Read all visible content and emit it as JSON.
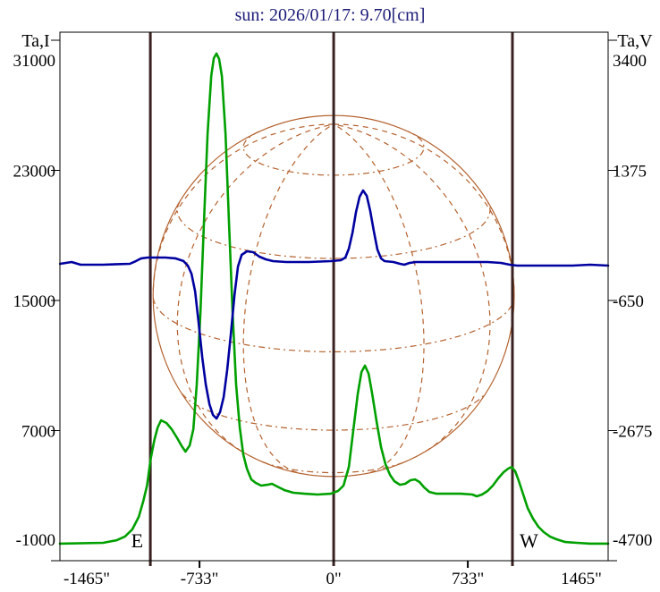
{
  "chart_data": {
    "type": "line",
    "title": "sun: 2026/01/17: 9.70[cm]",
    "x_axis": {
      "tick_labels": [
        "-1465\"",
        "-733\"",
        "0\"",
        "733\"",
        "1465\""
      ],
      "tick_values": [
        -1465,
        -733,
        0,
        733,
        1465
      ],
      "bottom_tick_values": [
        -733,
        733
      ],
      "range": [
        -1496,
        1500
      ],
      "unit": "arcsec"
    },
    "left_axis": {
      "label": "Ta,I",
      "tick_labels": [
        "31000",
        "23000",
        "15000",
        "7000",
        "-1000"
      ],
      "tick_values": [
        31000,
        23000,
        15000,
        7000,
        -1000
      ],
      "range": [
        -1000,
        31495
      ]
    },
    "right_axis": {
      "label": "Ta,V",
      "tick_labels": [
        "3400",
        "1375",
        "-650",
        "-2675",
        "-4700"
      ],
      "tick_values": [
        3400,
        1375,
        -650,
        -2675,
        -4700
      ],
      "range": [
        -4700,
        3525
      ]
    },
    "limb_markers": {
      "east": {
        "x": -1002,
        "label": "E"
      },
      "west": {
        "x": 977,
        "label": "W"
      },
      "center_x": 0
    },
    "sun_disk": {
      "radius_arcsec": 987,
      "center_y_value": 15275,
      "grid_latitudes": [
        -60,
        -30,
        0,
        30,
        60
      ],
      "grid_meridians": [
        -90,
        -60,
        -30,
        0,
        30,
        60,
        90
      ],
      "tilt_deg": 18
    },
    "series": [
      {
        "name": "Ta,I",
        "axis": "left",
        "color": "#00A000",
        "points": [
          [
            -1496,
            50
          ],
          [
            -1260,
            100
          ],
          [
            -1185,
            260
          ],
          [
            -1140,
            490
          ],
          [
            -1100,
            930
          ],
          [
            -1065,
            1700
          ],
          [
            -1040,
            2680
          ],
          [
            -1020,
            3620
          ],
          [
            -1000,
            5270
          ],
          [
            -980,
            6420
          ],
          [
            -962,
            7190
          ],
          [
            -943,
            7630
          ],
          [
            -914,
            7470
          ],
          [
            -885,
            7080
          ],
          [
            -855,
            6530
          ],
          [
            -830,
            6040
          ],
          [
            -810,
            5710
          ],
          [
            -787,
            6090
          ],
          [
            -767,
            7080
          ],
          [
            -748,
            9830
          ],
          [
            -728,
            14230
          ],
          [
            -709,
            19730
          ],
          [
            -689,
            25230
          ],
          [
            -669,
            28800
          ],
          [
            -655,
            29900
          ],
          [
            -640,
            30180
          ],
          [
            -626,
            29850
          ],
          [
            -611,
            28800
          ],
          [
            -591,
            25230
          ],
          [
            -572,
            19730
          ],
          [
            -552,
            14230
          ],
          [
            -533,
            9830
          ],
          [
            -513,
            7190
          ],
          [
            -494,
            5540
          ],
          [
            -474,
            4660
          ],
          [
            -450,
            4000
          ],
          [
            -425,
            3780
          ],
          [
            -396,
            3620
          ],
          [
            -362,
            3670
          ],
          [
            -337,
            3730
          ],
          [
            -308,
            3560
          ],
          [
            -269,
            3340
          ],
          [
            -220,
            3180
          ],
          [
            -160,
            3120
          ],
          [
            -88,
            3070
          ],
          [
            -15,
            3120
          ],
          [
            24,
            3290
          ],
          [
            54,
            3620
          ],
          [
            83,
            4770
          ],
          [
            108,
            7080
          ],
          [
            132,
            9280
          ],
          [
            152,
            10600
          ],
          [
            171,
            10990
          ],
          [
            191,
            10490
          ],
          [
            210,
            9280
          ],
          [
            235,
            7520
          ],
          [
            259,
            5980
          ],
          [
            283,
            4940
          ],
          [
            308,
            4280
          ],
          [
            332,
            3890
          ],
          [
            362,
            3670
          ],
          [
            391,
            3730
          ],
          [
            420,
            3950
          ],
          [
            445,
            4000
          ],
          [
            469,
            3840
          ],
          [
            494,
            3510
          ],
          [
            523,
            3230
          ],
          [
            562,
            3120
          ],
          [
            694,
            3120
          ],
          [
            758,
            3070
          ],
          [
            782,
            2960
          ],
          [
            811,
            3070
          ],
          [
            841,
            3290
          ],
          [
            870,
            3620
          ],
          [
            899,
            4060
          ],
          [
            928,
            4440
          ],
          [
            953,
            4660
          ],
          [
            972,
            4770
          ],
          [
            992,
            4500
          ],
          [
            1012,
            3890
          ],
          [
            1036,
            3070
          ],
          [
            1060,
            2240
          ],
          [
            1090,
            1580
          ],
          [
            1119,
            1090
          ],
          [
            1148,
            760
          ],
          [
            1183,
            480
          ],
          [
            1217,
            320
          ],
          [
            1266,
            150
          ],
          [
            1329,
            100
          ],
          [
            1402,
            50
          ],
          [
            1500,
            50
          ]
        ]
      },
      {
        "name": "Ta,V",
        "axis": "right",
        "color": "#0000A0",
        "points": [
          [
            -1495,
            -79
          ],
          [
            -1432,
            -51
          ],
          [
            -1383,
            -93
          ],
          [
            -1261,
            -93
          ],
          [
            -1114,
            -79
          ],
          [
            -1080,
            -37
          ],
          [
            -1051,
            5
          ],
          [
            -1016,
            18
          ],
          [
            -919,
            18
          ],
          [
            -865,
            5
          ],
          [
            -821,
            -37
          ],
          [
            -797,
            -107
          ],
          [
            -777,
            -232
          ],
          [
            -757,
            -511
          ],
          [
            -738,
            -998
          ],
          [
            -718,
            -1541
          ],
          [
            -699,
            -1958
          ],
          [
            -679,
            -2264
          ],
          [
            -660,
            -2431
          ],
          [
            -640,
            -2487
          ],
          [
            -621,
            -2390
          ],
          [
            -601,
            -2153
          ],
          [
            -582,
            -1736
          ],
          [
            -562,
            -1179
          ],
          [
            -542,
            -566
          ],
          [
            -523,
            -121
          ],
          [
            -503,
            60
          ],
          [
            -474,
            116
          ],
          [
            -440,
            102
          ],
          [
            -406,
            32
          ],
          [
            -371,
            -10
          ],
          [
            -332,
            -38
          ],
          [
            -259,
            -51
          ],
          [
            -137,
            -51
          ],
          [
            -15,
            -38
          ],
          [
            39,
            -24
          ],
          [
            64,
            18
          ],
          [
            83,
            157
          ],
          [
            103,
            408
          ],
          [
            122,
            728
          ],
          [
            142,
            964
          ],
          [
            161,
            1062
          ],
          [
            181,
            978
          ],
          [
            200,
            742
          ],
          [
            220,
            422
          ],
          [
            239,
            143
          ],
          [
            259,
            4
          ],
          [
            278,
            -38
          ],
          [
            327,
            -51
          ],
          [
            362,
            -79
          ],
          [
            386,
            -93
          ],
          [
            415,
            -65
          ],
          [
            450,
            -51
          ],
          [
            621,
            -51
          ],
          [
            841,
            -51
          ],
          [
            914,
            -65
          ],
          [
            963,
            -93
          ],
          [
            1002,
            -107
          ],
          [
            1305,
            -107
          ],
          [
            1402,
            -93
          ],
          [
            1500,
            -107
          ]
        ]
      }
    ],
    "colors": {
      "grid": "#B4622F",
      "marker_lines": "#3B2222",
      "frame": "#000000",
      "title": "#1C1C78"
    }
  }
}
